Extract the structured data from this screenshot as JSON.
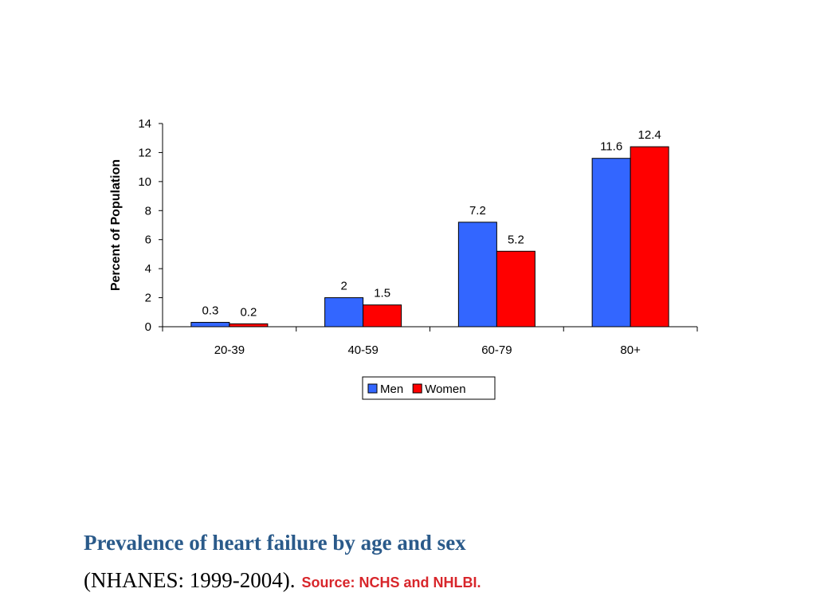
{
  "chart_data": {
    "type": "bar",
    "categories": [
      "20-39",
      "40-59",
      "60-79",
      "80+"
    ],
    "series": [
      {
        "name": "Men",
        "values": [
          0.3,
          2,
          7.2,
          11.6
        ],
        "labels": [
          "0.3",
          "2",
          "7.2",
          "11.6"
        ],
        "color": "#3366ff"
      },
      {
        "name": "Women",
        "values": [
          0.2,
          1.5,
          5.2,
          12.4
        ],
        "labels": [
          "0.2",
          "1.5",
          "5.2",
          "12.4"
        ],
        "color": "#ff0000"
      }
    ],
    "ylabel": "Percent of Population",
    "xlabel": "",
    "ylim": [
      0,
      14
    ],
    "yticks": [
      0,
      2,
      4,
      6,
      8,
      10,
      12,
      14
    ],
    "grid": false,
    "legend_position": "bottom"
  },
  "caption": {
    "title": "Prevalence of heart failure by age and sex",
    "subtitle": "(NHANES: 1999-2004).",
    "source": "Source: NCHS and NHLBI."
  }
}
